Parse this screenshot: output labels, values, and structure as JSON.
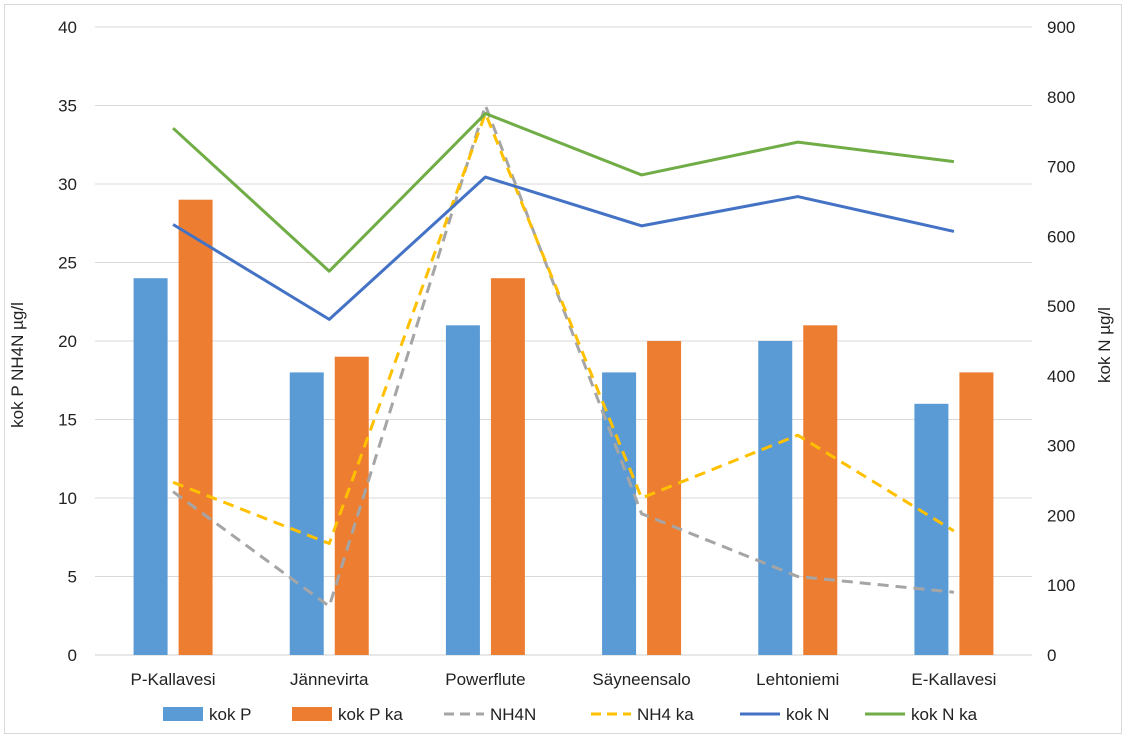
{
  "chart_data": {
    "type": "bar",
    "categories": [
      "P-Kallavesi",
      "Jännevirta",
      "Powerflute",
      "Säyneensalo",
      "Lehtoniemi",
      "E-Kallavesi"
    ],
    "series": [
      {
        "name": "kok P",
        "kind": "bar",
        "axis": "left",
        "color": "#5b9bd5",
        "values": [
          24,
          18,
          21,
          18,
          20,
          16
        ]
      },
      {
        "name": "kok P ka",
        "kind": "bar",
        "axis": "left",
        "color": "#ed7d31",
        "values": [
          29,
          19,
          24,
          20,
          21,
          18
        ]
      },
      {
        "name": "NH4N",
        "kind": "line",
        "dashed": true,
        "axis": "left",
        "color": "#a5a5a5",
        "values": [
          10.4,
          3.1,
          35,
          9,
          5,
          4
        ]
      },
      {
        "name": "NH4 ka",
        "kind": "line",
        "dashed": true,
        "axis": "left",
        "color": "#ffc000",
        "values": [
          11,
          7.1,
          34.5,
          10,
          14,
          7.9
        ]
      },
      {
        "name": "kok N",
        "kind": "line",
        "dashed": false,
        "axis": "right",
        "color": "#4472c4",
        "values": [
          617,
          481,
          685,
          615,
          657,
          607
        ]
      },
      {
        "name": "kok N ka",
        "kind": "line",
        "dashed": false,
        "axis": "right",
        "color": "#70ad47",
        "values": [
          755,
          550,
          776,
          688,
          735,
          707
        ]
      }
    ],
    "ylabel": "kok P NH4N µg/l",
    "y2label": "kok N µg/l",
    "ylim": [
      0,
      40
    ],
    "y2lim": [
      0,
      900
    ],
    "yticks": [
      "0",
      "5",
      "10",
      "15",
      "20",
      "25",
      "30",
      "35",
      "40"
    ],
    "y2ticks": [
      "0",
      "100",
      "200",
      "300",
      "400",
      "500",
      "600",
      "700",
      "800",
      "900"
    ],
    "grid": true,
    "legend_position": "bottom"
  }
}
